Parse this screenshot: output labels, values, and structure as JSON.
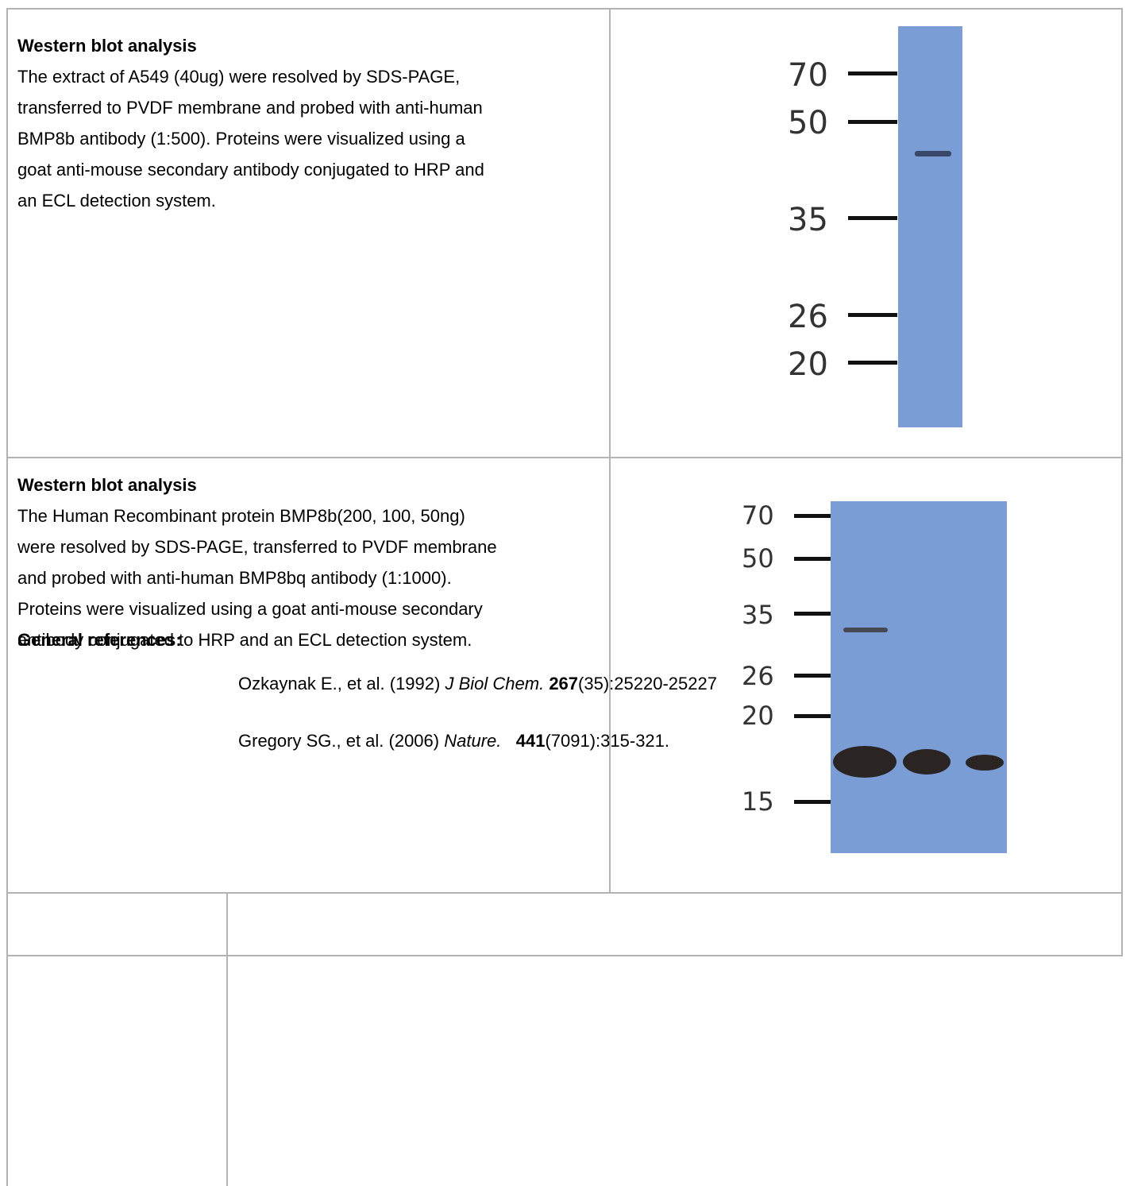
{
  "section1": {
    "title": "Western blot analysis",
    "body": "The extract of   A549 (40ug) were resolved by SDS-PAGE,\ntransferred to PVDF membrane and probed with anti-human\nBMP8b antibody (1:500). Proteins were visualized using a\ngoat anti-mouse secondary antibody conjugated to HRP and\nan ECL detection system.",
    "markers": [
      "70",
      "50",
      "35",
      "26",
      "20"
    ]
  },
  "section2": {
    "title": "Western blot analysis",
    "body": "The Human Recombinant protein BMP8b(200, 100, 50ng)\nwere resolved by SDS-PAGE, transferred to PVDF membrane\nand probed with anti-human BMP8bq antibody (1:1000).\nProteins were visualized using a goat anti-mouse secondary\nantibody conjugated to HRP and an ECL detection system.",
    "markers": [
      "70",
      "50",
      "35",
      "26",
      "20",
      "15"
    ]
  },
  "references": {
    "label": "General references:",
    "items": [
      {
        "authors": "Ozkaynak E., et al. (1992) ",
        "journal": "J Biol Chem.",
        "volume": "267",
        "rest": "(35):25220-25227"
      },
      {
        "authors": "Gregory SG., et al. (2006) ",
        "journal": "Nature.",
        "volume": "441",
        "rest": "(7091):315-321."
      }
    ]
  },
  "colors": {
    "membrane": "#7b9dd6",
    "grid": "#b3b3b3",
    "band": "#2a2422"
  }
}
